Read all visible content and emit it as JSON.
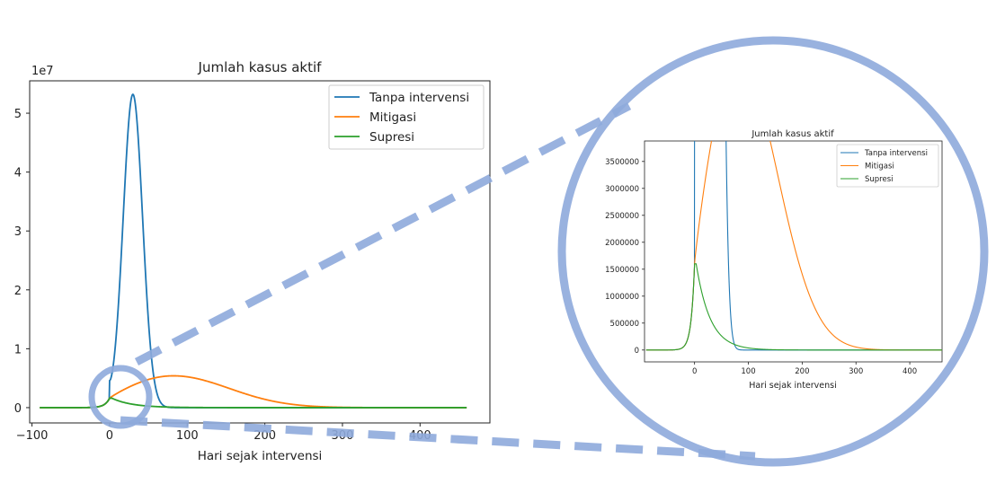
{
  "colors": {
    "tanpa": "#1f77b4",
    "mitigasi": "#ff7f0e",
    "supresi": "#2ca02c",
    "zoom": "#8eaadb"
  },
  "chart_data": [
    {
      "type": "line",
      "title": "Jumlah kasus aktif",
      "xlabel": "Hari sejak intervensi",
      "ylabel": "",
      "y_offset_text": "1e7",
      "xlim": [
        -103,
        490
      ],
      "ylim": [
        -2.6,
        55.5
      ],
      "y_unit": "1e7",
      "xticks": [
        -100,
        0,
        100,
        200,
        300,
        400
      ],
      "xtick_labels": [
        "−100",
        "0",
        "100",
        "200",
        "300",
        "400"
      ],
      "yticks": [
        0,
        1,
        2,
        3,
        4,
        5
      ],
      "ytick_labels": [
        "0",
        "1",
        "2",
        "3",
        "4",
        "5"
      ],
      "legend_position": "upper right",
      "series": [
        {
          "name": "Tanpa intervensi",
          "color": "tanpa",
          "peak_day": 30,
          "peak_value": 53200000.0
        },
        {
          "name": "Mitigasi",
          "color": "mitigasi",
          "peak_day": 82,
          "peak_value": 5400000.0
        },
        {
          "name": "Supresi",
          "color": "supresi",
          "peak_day": 3,
          "peak_value": 1600000.0
        }
      ]
    },
    {
      "type": "line",
      "title": "Jumlah kasus aktif",
      "xlabel": "Hari sejak intervensi",
      "ylabel": "",
      "xlim": [
        -93,
        460
      ],
      "ylim": [
        -220000,
        3880000
      ],
      "xticks": [
        0,
        100,
        200,
        300,
        400
      ],
      "xtick_labels": [
        "0",
        "100",
        "200",
        "300",
        "400"
      ],
      "yticks": [
        0,
        500000,
        1000000,
        1500000,
        2000000,
        2500000,
        3000000,
        3500000
      ],
      "ytick_labels": [
        "0",
        "500000",
        "1000000",
        "1500000",
        "2000000",
        "2500000",
        "3000000",
        "3500000"
      ],
      "legend_position": "upper right",
      "series": [
        {
          "name": "Tanpa intervensi",
          "color": "tanpa"
        },
        {
          "name": "Mitigasi",
          "color": "mitigasi"
        },
        {
          "name": "Supresi",
          "color": "supresi"
        }
      ]
    }
  ]
}
